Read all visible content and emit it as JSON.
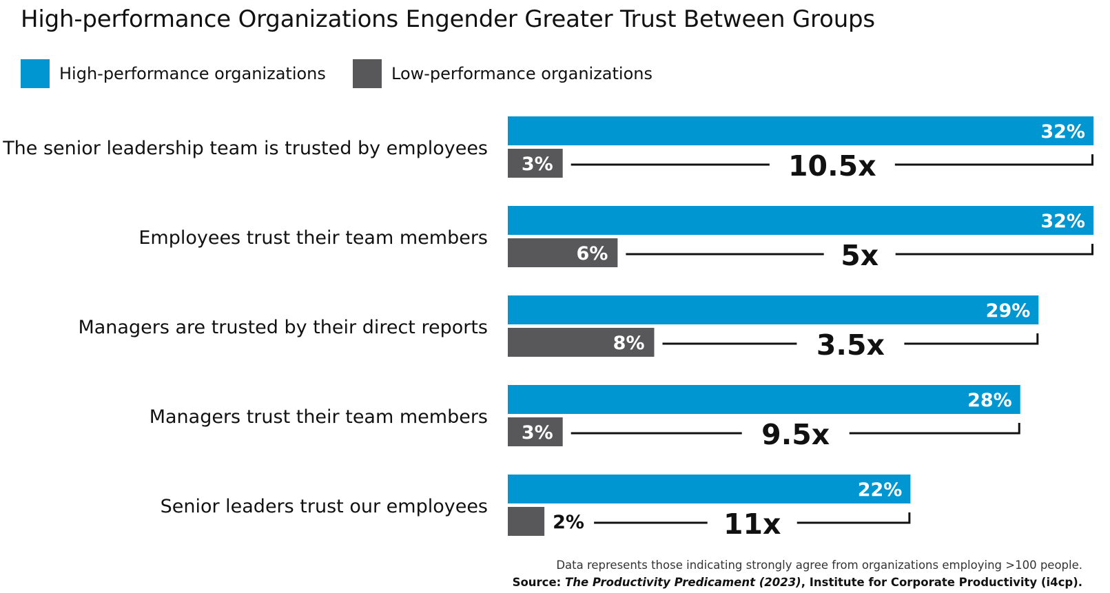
{
  "title": "High-performance Organizations Engender Greater Trust Between Groups",
  "legend": {
    "high": {
      "label": "High-performance organizations",
      "color": "#0096d1"
    },
    "low": {
      "label": "Low-performance organizations",
      "color": "#58585a"
    }
  },
  "footnote": {
    "line1": "Data represents those indicating strongly agree from organizations employing >100 people.",
    "source_prefix": "Source: ",
    "source_title": "The Productivity Predicament (2023)",
    "source_suffix": ", Institute for Corporate Productivity (i4cp)."
  },
  "chart_data": {
    "type": "bar",
    "orientation": "horizontal",
    "title": "High-performance Organizations Engender Greater Trust Between Groups",
    "categories": [
      "The senior leadership team is trusted by employees",
      "Employees trust their team members",
      "Managers are trusted by their direct reports",
      "Managers trust their team members",
      "Senior leaders trust our employees"
    ],
    "series": [
      {
        "name": "High-performance organizations",
        "color": "#0096d1",
        "values": [
          32,
          32,
          29,
          28,
          22
        ],
        "labels": [
          "32%",
          "32%",
          "29%",
          "28%",
          "22%"
        ]
      },
      {
        "name": "Low-performance organizations",
        "color": "#58585a",
        "values": [
          3,
          6,
          8,
          3,
          2
        ],
        "labels": [
          "3%",
          "6%",
          "8%",
          "3%",
          "2%"
        ]
      }
    ],
    "multipliers": [
      "10.5x",
      "5x",
      "3.5x",
      "9.5x",
      "11x"
    ],
    "unit": "%",
    "xlim": [
      0,
      32
    ]
  }
}
